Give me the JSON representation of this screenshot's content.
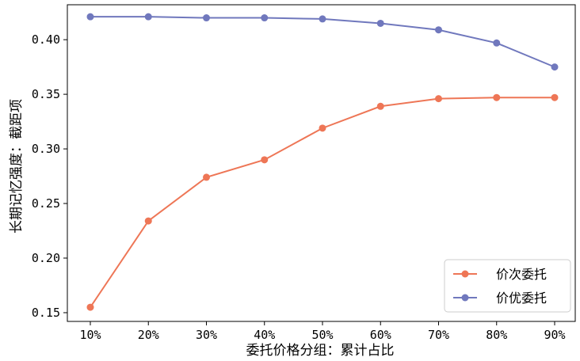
{
  "chart_data": {
    "type": "line",
    "title": "",
    "xlabel": "委托价格分组：累计占比",
    "ylabel": "长期记忆强度：截距项",
    "categories": [
      "10%",
      "20%",
      "30%",
      "40%",
      "50%",
      "60%",
      "70%",
      "80%",
      "90%"
    ],
    "ylim": [
      0.142,
      0.432
    ],
    "yticks": [
      0.15,
      0.2,
      0.25,
      0.3,
      0.35,
      0.4
    ],
    "ytick_labels": [
      "0.15",
      "0.20",
      "0.25",
      "0.30",
      "0.35",
      "0.40"
    ],
    "grid": false,
    "legend_position": "lower-right",
    "series": [
      {
        "name": "价次委托",
        "color": "#ee7656",
        "values": [
          0.155,
          0.234,
          0.274,
          0.29,
          0.319,
          0.339,
          0.346,
          0.347,
          0.347
        ]
      },
      {
        "name": "价优委托",
        "color": "#7078bd",
        "values": [
          0.421,
          0.421,
          0.42,
          0.42,
          0.419,
          0.415,
          0.409,
          0.397,
          0.375
        ]
      }
    ]
  }
}
